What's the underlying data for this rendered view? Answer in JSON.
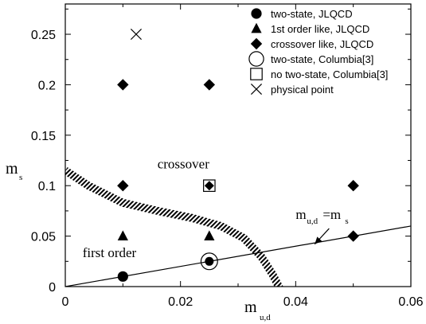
{
  "chart_data": {
    "type": "scatter",
    "xlabel": "m",
    "xlabel_sub": "u,d",
    "ylabel": "m",
    "ylabel_sub": "s",
    "xlim": [
      0,
      0.06
    ],
    "ylim": [
      0,
      0.28
    ],
    "xticks": [
      {
        "v": 0,
        "label": "0"
      },
      {
        "v": 0.02,
        "label": "0.02"
      },
      {
        "v": 0.04,
        "label": "0.04"
      },
      {
        "v": 0.06,
        "label": "0.06"
      }
    ],
    "yticks": [
      {
        "v": 0,
        "label": "0"
      },
      {
        "v": 0.05,
        "label": "0.05"
      },
      {
        "v": 0.1,
        "label": "0.1"
      },
      {
        "v": 0.15,
        "label": "0.15"
      },
      {
        "v": 0.2,
        "label": "0.2"
      },
      {
        "v": 0.25,
        "label": "0.25"
      }
    ],
    "legend_position": "top-right",
    "series": [
      {
        "name": "two-state, JLQCD",
        "marker": "filled-circle",
        "points": [
          [
            0.01,
            0.01
          ],
          [
            0.025,
            0.025
          ]
        ]
      },
      {
        "name": "1st order like, JLQCD",
        "marker": "filled-triangle",
        "points": [
          [
            0.01,
            0.05
          ],
          [
            0.025,
            0.05
          ]
        ]
      },
      {
        "name": "crossover like, JLQCD",
        "marker": "filled-diamond",
        "points": [
          [
            0.01,
            0.1
          ],
          [
            0.01,
            0.2
          ],
          [
            0.025,
            0.1
          ],
          [
            0.025,
            0.2
          ],
          [
            0.05,
            0.05
          ],
          [
            0.05,
            0.1
          ]
        ]
      },
      {
        "name": "two-state, Columbia[3]",
        "marker": "open-circle",
        "points": [
          [
            0.025,
            0.025
          ]
        ]
      },
      {
        "name": "no two-state, Columbia[3]",
        "marker": "open-square",
        "points": [
          [
            0.025,
            0.1
          ]
        ]
      },
      {
        "name": "physical point",
        "marker": "cross",
        "points": [
          [
            0.0123,
            0.25
          ]
        ]
      }
    ],
    "lines": [
      {
        "name": "m_ud = m_s line",
        "points": [
          [
            0,
            0.0
          ],
          [
            0.06,
            0.06
          ]
        ]
      }
    ],
    "boundary_band": {
      "points": [
        [
          0.0,
          0.115
        ],
        [
          0.004,
          0.1
        ],
        [
          0.01,
          0.083
        ],
        [
          0.016,
          0.075
        ],
        [
          0.022,
          0.068
        ],
        [
          0.027,
          0.06
        ],
        [
          0.031,
          0.048
        ],
        [
          0.034,
          0.03
        ],
        [
          0.036,
          0.012
        ],
        [
          0.0375,
          -0.005
        ]
      ]
    },
    "annotations": [
      {
        "text": "crossover",
        "x": 0.016,
        "y": 0.117
      },
      {
        "text": "first order",
        "x": 0.003,
        "y": 0.029
      }
    ],
    "line_label": {
      "text_main": "m",
      "text_sub": "u,d",
      "text_eq": "=m",
      "text_sub2": "s",
      "x": 0.04,
      "y": 0.067,
      "arrow_to": [
        0.0433,
        0.042
      ]
    }
  }
}
